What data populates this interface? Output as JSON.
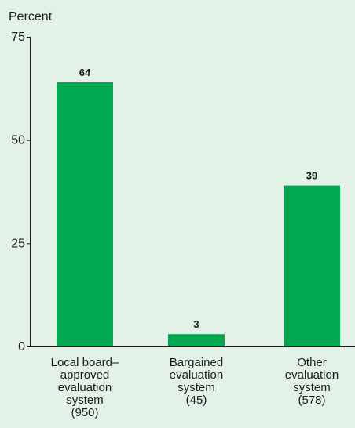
{
  "chart_data": {
    "type": "bar",
    "title": "",
    "ylabel": "Percent",
    "xlabel": "",
    "ylim": [
      0,
      75
    ],
    "yticks": [
      0,
      25,
      50,
      75
    ],
    "grid": false,
    "bar_color": "#00a94f",
    "background": "#e2f2e6",
    "categories": [
      [
        "Local board–",
        "approved",
        "evaluation",
        "system",
        "(950)"
      ],
      [
        "Bargained",
        "evaluation",
        "system",
        "(45)"
      ],
      [
        "Other",
        "evaluation",
        "system",
        "(578)"
      ]
    ],
    "values": [
      64,
      3,
      39
    ],
    "value_labels": [
      "64",
      "3",
      "39"
    ]
  }
}
